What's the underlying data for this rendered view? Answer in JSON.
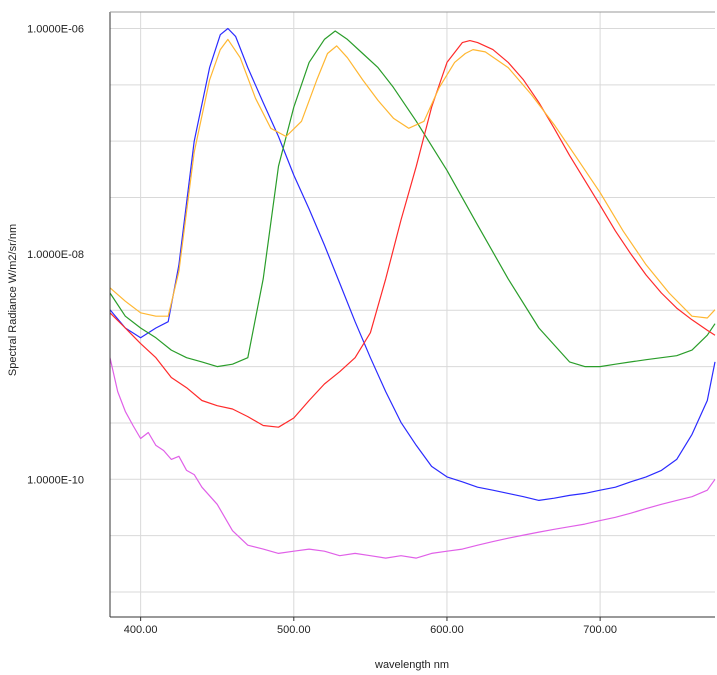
{
  "chart_data": {
    "type": "line",
    "xlabel": "wavelength nm",
    "ylabel": "Spectral Radiance W/m2/sr/nm",
    "y_scale": "log",
    "grid": true,
    "xlim": [
      380,
      775
    ],
    "ylim": [
      6e-12,
      1.4e-06
    ],
    "x_ticks": [
      400,
      500,
      600,
      700
    ],
    "x_tick_labels": [
      "400.00",
      "500.00",
      "600.00",
      "700.00"
    ],
    "y_ticks": [
      1e-06,
      1e-08,
      1e-10
    ],
    "y_tick_labels": [
      "1.0000E-06",
      "1.0000E-08",
      "1.0000E-10"
    ],
    "series": [
      {
        "color": "#2b2bff",
        "x": [
          380,
          390,
          400,
          410,
          418,
          425,
          435,
          445,
          452,
          457,
          462,
          470,
          480,
          490,
          500,
          510,
          520,
          530,
          540,
          550,
          560,
          570,
          580,
          590,
          600,
          610,
          620,
          630,
          640,
          650,
          660,
          670,
          680,
          690,
          700,
          710,
          720,
          730,
          740,
          750,
          760,
          770,
          775
        ],
        "y": [
          3.2e-09,
          2.2e-09,
          1.8e-09,
          2.2e-09,
          2.5e-09,
          8e-09,
          1e-07,
          4.5e-07,
          8.8e-07,
          1e-06,
          8.5e-07,
          4.5e-07,
          2.2e-07,
          1.1e-07,
          5e-08,
          2.5e-08,
          1.2e-08,
          5.5e-09,
          2.5e-09,
          1.2e-09,
          6e-10,
          3.2e-10,
          2e-10,
          1.3e-10,
          1.05e-10,
          9.5e-11,
          8.5e-11,
          8e-11,
          7.5e-11,
          7e-11,
          6.5e-11,
          6.8e-11,
          7.2e-11,
          7.5e-11,
          8e-11,
          8.5e-11,
          9.5e-11,
          1.05e-10,
          1.2e-10,
          1.5e-10,
          2.5e-10,
          5e-10,
          1.1e-09
        ]
      },
      {
        "color": "#2a9d2a",
        "x": [
          380,
          390,
          400,
          410,
          420,
          430,
          440,
          450,
          460,
          470,
          480,
          490,
          500,
          510,
          520,
          527,
          535,
          545,
          555,
          565,
          580,
          600,
          620,
          640,
          660,
          680,
          690,
          700,
          710,
          720,
          730,
          740,
          750,
          760,
          770,
          775
        ],
        "y": [
          4.5e-09,
          2.8e-09,
          2.2e-09,
          1.8e-09,
          1.4e-09,
          1.2e-09,
          1.1e-09,
          1e-09,
          1.05e-09,
          1.2e-09,
          6e-09,
          6e-08,
          2e-07,
          5e-07,
          8e-07,
          9.5e-07,
          8e-07,
          6e-07,
          4.5e-07,
          3e-07,
          1.5e-07,
          5.5e-08,
          1.8e-08,
          6e-09,
          2.2e-09,
          1.1e-09,
          1e-09,
          1e-09,
          1.05e-09,
          1.1e-09,
          1.15e-09,
          1.2e-09,
          1.25e-09,
          1.4e-09,
          1.9e-09,
          2.4e-09
        ]
      },
      {
        "color": "#ff2b2b",
        "x": [
          380,
          390,
          400,
          410,
          420,
          430,
          440,
          450,
          460,
          470,
          480,
          490,
          500,
          510,
          520,
          530,
          540,
          550,
          560,
          570,
          580,
          590,
          600,
          610,
          615,
          620,
          630,
          640,
          650,
          660,
          670,
          680,
          690,
          700,
          710,
          720,
          730,
          740,
          750,
          760,
          770,
          775
        ],
        "y": [
          3e-09,
          2.2e-09,
          1.6e-09,
          1.2e-09,
          8e-10,
          6.5e-10,
          5e-10,
          4.5e-10,
          4.2e-10,
          3.6e-10,
          3e-10,
          2.9e-10,
          3.5e-10,
          5e-10,
          7e-10,
          9e-10,
          1.2e-09,
          2e-09,
          6e-09,
          2e-08,
          6e-08,
          2e-07,
          5e-07,
          7.5e-07,
          7.8e-07,
          7.5e-07,
          6.5e-07,
          5e-07,
          3.5e-07,
          2.2e-07,
          1.3e-07,
          7.5e-08,
          4.5e-08,
          2.7e-08,
          1.6e-08,
          1e-08,
          6.5e-09,
          4.5e-09,
          3.3e-09,
          2.6e-09,
          2.1e-09,
          1.9e-09
        ]
      },
      {
        "color": "#ffb732",
        "x": [
          380,
          390,
          400,
          410,
          418,
          425,
          435,
          445,
          452,
          457,
          465,
          475,
          485,
          495,
          505,
          515,
          522,
          528,
          535,
          545,
          555,
          565,
          575,
          585,
          595,
          605,
          612,
          617,
          625,
          640,
          655,
          670,
          685,
          700,
          715,
          730,
          745,
          760,
          770,
          775
        ],
        "y": [
          5e-09,
          3.8e-09,
          3e-09,
          2.8e-09,
          2.8e-09,
          7e-09,
          8e-08,
          3.5e-07,
          6.5e-07,
          8e-07,
          5.5e-07,
          2.4e-07,
          1.3e-07,
          1.1e-07,
          1.5e-07,
          3.5e-07,
          6e-07,
          7e-07,
          5.5e-07,
          3.5e-07,
          2.3e-07,
          1.6e-07,
          1.3e-07,
          1.5e-07,
          3e-07,
          5e-07,
          6e-07,
          6.5e-07,
          6.2e-07,
          4.5e-07,
          2.6e-07,
          1.4e-07,
          7e-08,
          3.5e-08,
          1.6e-08,
          8e-09,
          4.5e-09,
          2.8e-09,
          2.7e-09,
          3.2e-09
        ]
      },
      {
        "color": "#e060e8",
        "x": [
          380,
          385,
          390,
          395,
          400,
          405,
          410,
          415,
          420,
          425,
          430,
          435,
          440,
          450,
          460,
          470,
          480,
          490,
          500,
          510,
          520,
          530,
          540,
          550,
          560,
          570,
          580,
          590,
          600,
          610,
          620,
          630,
          640,
          650,
          660,
          670,
          680,
          690,
          700,
          710,
          720,
          730,
          740,
          750,
          760,
          770,
          775
        ],
        "y": [
          1.2e-09,
          6e-10,
          4e-10,
          3e-10,
          2.3e-10,
          2.6e-10,
          2e-10,
          1.8e-10,
          1.5e-10,
          1.6e-10,
          1.2e-10,
          1.1e-10,
          8.5e-11,
          6e-11,
          3.5e-11,
          2.6e-11,
          2.4e-11,
          2.2e-11,
          2.3e-11,
          2.4e-11,
          2.3e-11,
          2.1e-11,
          2.2e-11,
          2.1e-11,
          2e-11,
          2.1e-11,
          2e-11,
          2.2e-11,
          2.3e-11,
          2.4e-11,
          2.6e-11,
          2.8e-11,
          3e-11,
          3.2e-11,
          3.4e-11,
          3.6e-11,
          3.8e-11,
          4e-11,
          4.3e-11,
          4.6e-11,
          5e-11,
          5.5e-11,
          6e-11,
          6.5e-11,
          7e-11,
          8e-11,
          1e-10
        ]
      }
    ]
  }
}
